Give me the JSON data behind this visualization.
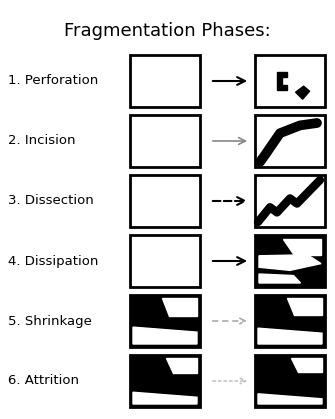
{
  "title": "Fragmentation Phases:",
  "title_fontsize": 13,
  "phases": [
    {
      "number": 1,
      "name": "Perforation",
      "arrow_style": "solid",
      "arrow_color": "#000000"
    },
    {
      "number": 2,
      "name": "Incision",
      "arrow_style": "solid_gray",
      "arrow_color": "#888888"
    },
    {
      "number": 3,
      "name": "Dissection",
      "arrow_style": "dashed_black",
      "arrow_color": "#000000"
    },
    {
      "number": 4,
      "name": "Dissipation",
      "arrow_style": "solid",
      "arrow_color": "#000000"
    },
    {
      "number": 5,
      "name": "Shrinkage",
      "arrow_style": "dashed_gray",
      "arrow_color": "#aaaaaa"
    },
    {
      "number": 6,
      "name": "Attrition",
      "arrow_style": "dashed_lgray",
      "arrow_color": "#bbbbbb"
    }
  ],
  "bg_color": "#ffffff",
  "fig_w": 3.35,
  "fig_h": 4.19,
  "dpi": 100
}
